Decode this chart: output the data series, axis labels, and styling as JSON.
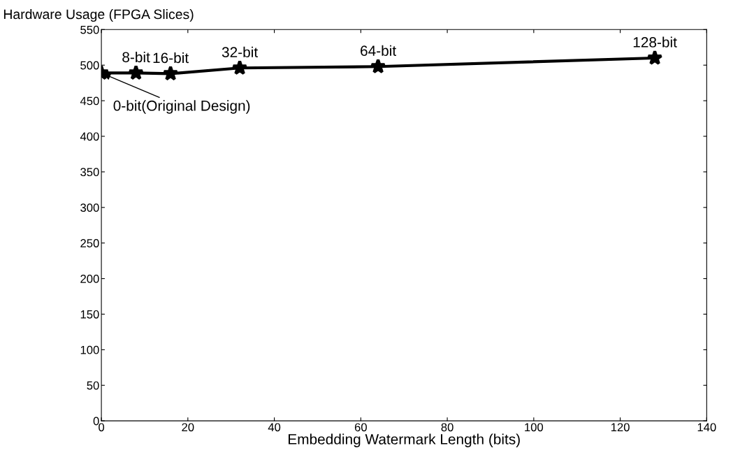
{
  "chart_data": {
    "type": "line",
    "ylabel": "Hardware Usage (FPGA Slices)",
    "xlabel": "Embedding Watermark Length (bits)",
    "x": [
      0,
      8,
      16,
      32,
      64,
      128
    ],
    "series": [
      {
        "color": "#000000",
        "values": [
          489,
          489,
          488,
          496,
          498,
          510
        ]
      }
    ],
    "annotations": [
      {
        "text": "0-bit(Original Design)",
        "x": 0,
        "y": 489
      },
      {
        "text": "8-bit",
        "x": 8,
        "y": 489
      },
      {
        "text": "16-bit",
        "x": 16,
        "y": 488
      },
      {
        "text": "32-bit",
        "x": 32,
        "y": 496
      },
      {
        "text": "64-bit",
        "x": 64,
        "y": 498
      },
      {
        "text": "128-bit",
        "x": 128,
        "y": 510
      }
    ],
    "xlim": [
      0,
      140
    ],
    "xticks": [
      0,
      20,
      40,
      60,
      80,
      100,
      120,
      140
    ],
    "ylim": [
      0,
      550
    ],
    "yticks": [
      0,
      50,
      100,
      150,
      200,
      250,
      300,
      350,
      400,
      450,
      500,
      550
    ],
    "grid": false,
    "marker": "star",
    "line_style": "solid"
  }
}
